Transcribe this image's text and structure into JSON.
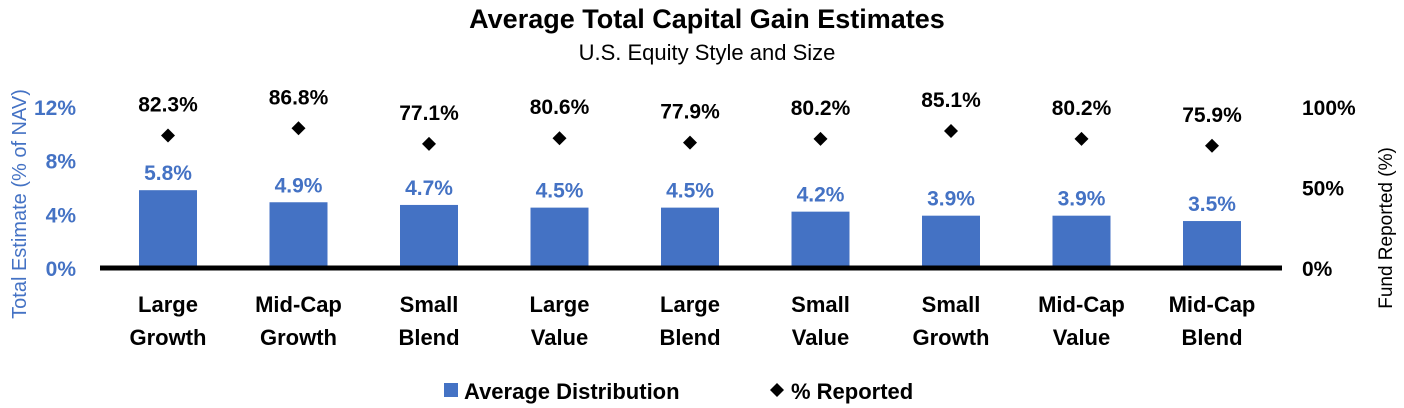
{
  "colors": {
    "bar": "#4472C4",
    "marker": "#000000",
    "axis": "#000000"
  },
  "chart_data": {
    "type": "bar",
    "title": "Average Total Capital Gain Estimates",
    "subtitle": "U.S. Equity Style and Size",
    "ylabel": "Total Estimate (% of NAV)",
    "ylabel_right": "Fund Reported (%)",
    "categories": [
      [
        "Large",
        "Growth"
      ],
      [
        "Mid-Cap",
        "Growth"
      ],
      [
        "Small",
        "Blend"
      ],
      [
        "Large",
        "Value"
      ],
      [
        "Large",
        "Blend"
      ],
      [
        "Small",
        "Value"
      ],
      [
        "Small",
        "Growth"
      ],
      [
        "Mid-Cap",
        "Value"
      ],
      [
        "Mid-Cap",
        "Blend"
      ]
    ],
    "ylim": [
      0,
      12
    ],
    "yticks": [
      "0%",
      "4%",
      "8%",
      "12%"
    ],
    "ylim_right": [
      0,
      100
    ],
    "yticks_right": [
      "0%",
      "50%",
      "100%"
    ],
    "series": [
      {
        "name": "Average Distribution",
        "type": "bar",
        "axis": "left",
        "values": [
          5.8,
          4.9,
          4.7,
          4.5,
          4.5,
          4.2,
          3.9,
          3.9,
          3.5
        ],
        "labels": [
          "5.8%",
          "4.9%",
          "4.7%",
          "4.5%",
          "4.5%",
          "4.2%",
          "3.9%",
          "3.9%",
          "3.5%"
        ]
      },
      {
        "name": "% Reported",
        "type": "scatter",
        "marker": "diamond",
        "axis": "right",
        "values": [
          82.3,
          86.8,
          77.1,
          80.6,
          77.9,
          80.2,
          85.1,
          80.2,
          75.9
        ],
        "labels": [
          "82.3%",
          "86.8%",
          "77.1%",
          "80.6%",
          "77.9%",
          "80.2%",
          "85.1%",
          "80.2%",
          "75.9%"
        ]
      }
    ],
    "legend": "bottom",
    "grid": false
  }
}
